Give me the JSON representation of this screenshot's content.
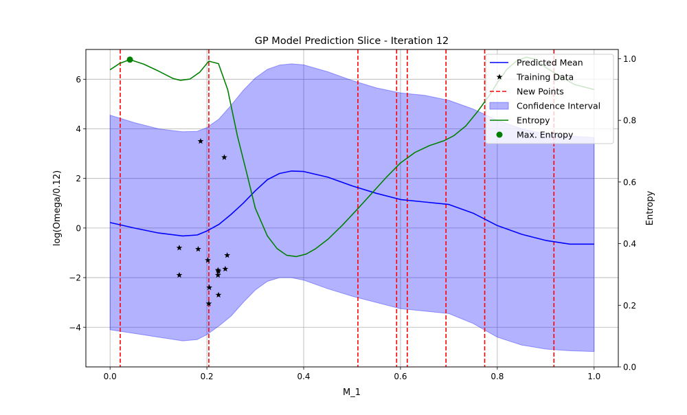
{
  "chart_data": {
    "type": "line",
    "title": "GP Model Prediction Slice - Iteration 12",
    "xlabel": "M_1",
    "ylabel": "log(Omega/0.12)",
    "y2label": "Entropy",
    "xlim": [
      -0.05,
      1.05
    ],
    "ylim": [
      -5.6,
      7.2
    ],
    "y2lim": [
      0.0,
      1.03
    ],
    "xticks": [
      0.0,
      0.2,
      0.4,
      0.6,
      0.8,
      1.0
    ],
    "xtick_labels": [
      "0.0",
      "0.2",
      "0.4",
      "0.6",
      "0.8",
      "1.0"
    ],
    "yticks": [
      -4,
      -2,
      0,
      2,
      4,
      6
    ],
    "ytick_labels": [
      "−4",
      "−2",
      "0",
      "2",
      "4",
      "6"
    ],
    "y2ticks": [
      0.0,
      0.2,
      0.4,
      0.6,
      0.8,
      1.0
    ],
    "y2tick_labels": [
      "0.0",
      "0.2",
      "0.4",
      "0.6",
      "0.8",
      "1.0"
    ],
    "grid": true,
    "legend_position": "top-right",
    "colors": {
      "mean": "#0000ff",
      "training": "#000000",
      "new_points": "#ff0000",
      "confidence": "#0000ff",
      "entropy": "#008000",
      "max_entropy": "#008000"
    },
    "series": [
      {
        "name": "Predicted Mean",
        "kind": "line",
        "x": [
          0.0,
          0.05,
          0.1,
          0.15,
          0.18,
          0.2,
          0.225,
          0.25,
          0.275,
          0.3,
          0.325,
          0.35,
          0.375,
          0.4,
          0.45,
          0.5,
          0.55,
          0.6,
          0.65,
          0.7,
          0.75,
          0.8,
          0.85,
          0.9,
          0.95,
          1.0
        ],
        "values": [
          0.22,
          0.0,
          -0.2,
          -0.32,
          -0.28,
          -0.12,
          0.15,
          0.55,
          1.0,
          1.5,
          1.95,
          2.2,
          2.3,
          2.28,
          2.05,
          1.7,
          1.4,
          1.15,
          1.05,
          0.95,
          0.6,
          0.1,
          -0.25,
          -0.5,
          -0.65,
          -0.65
        ]
      },
      {
        "name": "Training Data",
        "kind": "scatter",
        "x": [
          0.143,
          0.143,
          0.182,
          0.187,
          0.202,
          0.204,
          0.205,
          0.223,
          0.223,
          0.224,
          0.224,
          0.236,
          0.238,
          0.242
        ],
        "values": [
          -0.8,
          -1.9,
          -0.85,
          3.5,
          -1.3,
          -3.05,
          -2.4,
          -1.7,
          -1.9,
          -2.7,
          -1.75,
          2.85,
          -1.65,
          -1.1
        ]
      },
      {
        "name": "New Points",
        "kind": "vline",
        "x": [
          0.021,
          0.204,
          0.512,
          0.592,
          0.614,
          0.694,
          0.774,
          0.917
        ]
      },
      {
        "name": "Confidence Interval",
        "kind": "band",
        "x": [
          0.0,
          0.05,
          0.1,
          0.15,
          0.18,
          0.2,
          0.225,
          0.25,
          0.275,
          0.3,
          0.325,
          0.35,
          0.375,
          0.4,
          0.45,
          0.5,
          0.55,
          0.6,
          0.65,
          0.7,
          0.75,
          0.8,
          0.85,
          0.9,
          0.95,
          1.0
        ],
        "upper": [
          4.55,
          4.25,
          4.0,
          3.88,
          3.9,
          4.05,
          4.4,
          4.95,
          5.55,
          6.05,
          6.4,
          6.57,
          6.62,
          6.58,
          6.3,
          5.95,
          5.65,
          5.45,
          5.35,
          5.15,
          4.8,
          4.35,
          4.0,
          3.8,
          3.7,
          3.65
        ],
        "lower": [
          -4.1,
          -4.25,
          -4.4,
          -4.55,
          -4.5,
          -4.3,
          -3.95,
          -3.55,
          -3.0,
          -2.5,
          -2.15,
          -2.0,
          -2.0,
          -2.1,
          -2.45,
          -2.75,
          -3.0,
          -3.25,
          -3.35,
          -3.45,
          -3.85,
          -4.4,
          -4.72,
          -4.88,
          -4.95,
          -4.98
        ]
      },
      {
        "name": "Entropy",
        "kind": "line",
        "axis": "right",
        "x": [
          0.0,
          0.02,
          0.041,
          0.07,
          0.1,
          0.13,
          0.145,
          0.165,
          0.185,
          0.204,
          0.224,
          0.243,
          0.263,
          0.283,
          0.3,
          0.325,
          0.345,
          0.365,
          0.385,
          0.405,
          0.425,
          0.45,
          0.48,
          0.51,
          0.54,
          0.57,
          0.6,
          0.63,
          0.66,
          0.69,
          0.71,
          0.735,
          0.76,
          0.785,
          0.8,
          0.82,
          0.84,
          0.86,
          0.88,
          0.9,
          0.93,
          0.96,
          1.0
        ],
        "values": [
          0.964,
          0.985,
          0.997,
          0.982,
          0.96,
          0.936,
          0.93,
          0.934,
          0.956,
          0.992,
          0.984,
          0.9,
          0.75,
          0.625,
          0.515,
          0.425,
          0.384,
          0.362,
          0.358,
          0.366,
          0.384,
          0.414,
          0.46,
          0.51,
          0.562,
          0.614,
          0.662,
          0.696,
          0.718,
          0.734,
          0.75,
          0.782,
          0.83,
          0.884,
          0.922,
          0.966,
          0.993,
          1.005,
          0.998,
          0.972,
          0.942,
          0.916,
          0.9
        ]
      },
      {
        "name": "Max. Entropy",
        "kind": "point",
        "axis": "right",
        "x": [
          0.041
        ],
        "values": [
          0.997
        ]
      }
    ]
  }
}
